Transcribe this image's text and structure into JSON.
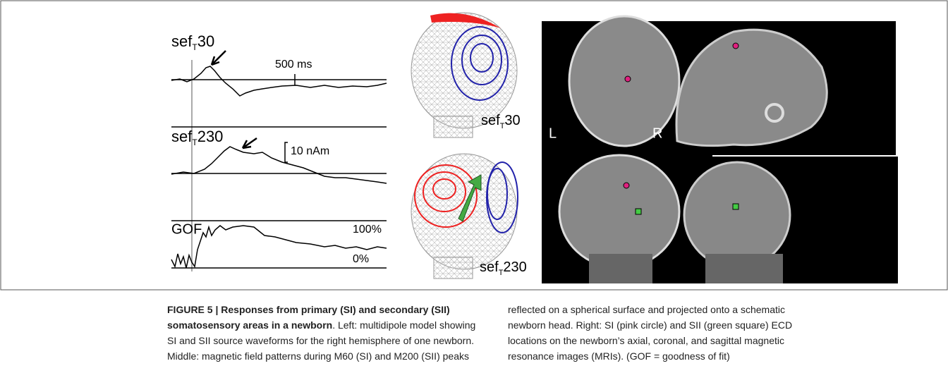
{
  "left_panel": {
    "traces": [
      {
        "label": [
          "sef",
          "T",
          "30"
        ],
        "scale": "500 ms"
      },
      {
        "label": [
          "sef",
          "T",
          "230"
        ],
        "scale": "10 nAm"
      },
      {
        "label": [
          "GOF"
        ],
        "top": "100%",
        "bottom": "0%"
      }
    ]
  },
  "middle_panel": {
    "labels": [
      [
        "sef",
        "T",
        "30"
      ],
      [
        "sef",
        "T",
        "230"
      ]
    ]
  },
  "right_panel": {
    "left": "L",
    "right": "R"
  },
  "caption": {
    "heading": "FIGURE 5 | Responses from primary (SI) and secondary (SII) somatosensory areas in a newborn",
    "body": ". Left: multidipole model showing SI and SII source waveforms for the right hemisphere of one newborn. Middle: magnetic field patterns during M60 (SI) and M200 (SII) peaks reflected on a spherical surface and projected onto a schematic newborn head. Right: SI (pink circle) and SII (green square) ECD locations on the newborn’s axial, coronal, and sagittal magnetic resonance images (MRIs). (GOF = goodness of fit)"
  }
}
